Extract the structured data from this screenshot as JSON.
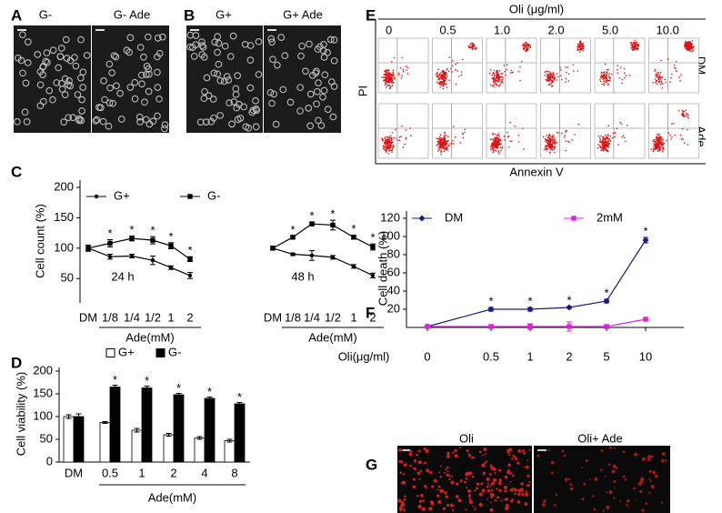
{
  "panels": {
    "A": {
      "label": "A",
      "images": [
        "G-",
        "G- Ade"
      ]
    },
    "B": {
      "label": "B",
      "images": [
        "G+",
        "G+ Ade"
      ]
    },
    "E": {
      "label": "E",
      "title": "Oli (μg/ml)",
      "columns": [
        "0",
        "0.5",
        "1.0",
        "2.0",
        "5.0",
        "10.0"
      ],
      "rows": [
        "DM",
        "Ade"
      ],
      "y_label": "PI",
      "x_label": "Annexin V"
    },
    "G": {
      "label": "G",
      "images": [
        "Oli",
        "Oli+ Ade"
      ]
    }
  },
  "chart_data": [
    {
      "label": "C",
      "type": "line",
      "y_label": "Cell count (%)",
      "ylim": [
        10,
        200
      ],
      "yticks": [
        50,
        100,
        150,
        200
      ],
      "series": [
        {
          "name": "G+",
          "color": "#000000",
          "marker": "dot"
        },
        {
          "name": "G-",
          "color": "#000000",
          "marker": "square"
        }
      ],
      "groups": [
        {
          "annotation": "24 h",
          "x_label": "Ade(mM)",
          "categories": [
            "DM",
            "1/8",
            "1/4",
            "1/2",
            "1",
            "2"
          ],
          "series": [
            {
              "values": [
                100,
                86,
                87,
                80,
                68,
                55
              ],
              "errors": [
                5,
                4,
                3,
                7,
                3,
                5
              ]
            },
            {
              "values": [
                100,
                108,
                116,
                113,
                104,
                82
              ],
              "errors": [
                5,
                6,
                4,
                6,
                5,
                4
              ],
              "annotations": [
                null,
                "*",
                "*",
                "*",
                "*",
                "*"
              ]
            }
          ]
        },
        {
          "annotation": "48 h",
          "x_label": "Ade(mM)",
          "categories": [
            "DM",
            "1/8",
            "1/4",
            "1/2",
            "1",
            "2"
          ],
          "series": [
            {
              "values": [
                100,
                90,
                88,
                85,
                70,
                55
              ],
              "errors": [
                3,
                2,
                8,
                3,
                3,
                4
              ]
            },
            {
              "values": [
                100,
                118,
                140,
                138,
                118,
                102
              ],
              "errors": [
                3,
                2,
                3,
                8,
                3,
                5
              ],
              "annotations": [
                null,
                "*",
                "*",
                "*",
                "*",
                "*"
              ]
            }
          ]
        }
      ]
    },
    {
      "label": "D",
      "type": "bar",
      "y_label": "Cell viability (%)",
      "x_label": "Ade(mM)",
      "ylim": [
        0,
        200
      ],
      "yticks": [
        0,
        50,
        100,
        150,
        200
      ],
      "categories": [
        "DM",
        "0.5",
        "1",
        "2",
        "4",
        "8"
      ],
      "series": [
        {
          "name": "G+",
          "color": "#ffffff",
          "values": [
            100,
            87,
            70,
            60,
            53,
            47
          ],
          "errors": [
            4,
            2,
            4,
            3,
            3,
            3
          ]
        },
        {
          "name": "G-",
          "color": "#000000",
          "values": [
            100,
            165,
            163,
            148,
            140,
            128
          ],
          "errors": [
            6,
            4,
            4,
            3,
            3,
            3
          ],
          "annotations": [
            null,
            "*",
            "*",
            "*",
            "*",
            "*"
          ]
        }
      ]
    },
    {
      "label": "F",
      "type": "line",
      "y_label": "Cell death (%)",
      "x_label": "Oli(μg/ml)",
      "ylim": [
        0,
        120
      ],
      "yticks": [
        20,
        40,
        60,
        80,
        100,
        120
      ],
      "categories": [
        "0",
        "0.5",
        "1",
        "2",
        "5",
        "10"
      ],
      "series": [
        {
          "name": "DM",
          "color": "#1a1a80",
          "marker": "diamond",
          "values": [
            1,
            20,
            20,
            22,
            29,
            96
          ],
          "errors": [
            1,
            2,
            2,
            1,
            2,
            3
          ],
          "annotations": [
            null,
            "*",
            "*",
            "*",
            "*",
            "*"
          ]
        },
        {
          "name": "2mM",
          "color": "#e020e0",
          "marker": "square",
          "values": [
            1,
            1,
            1,
            1,
            1,
            9
          ],
          "errors": [
            1,
            2,
            3,
            5,
            2,
            1
          ]
        }
      ]
    }
  ]
}
